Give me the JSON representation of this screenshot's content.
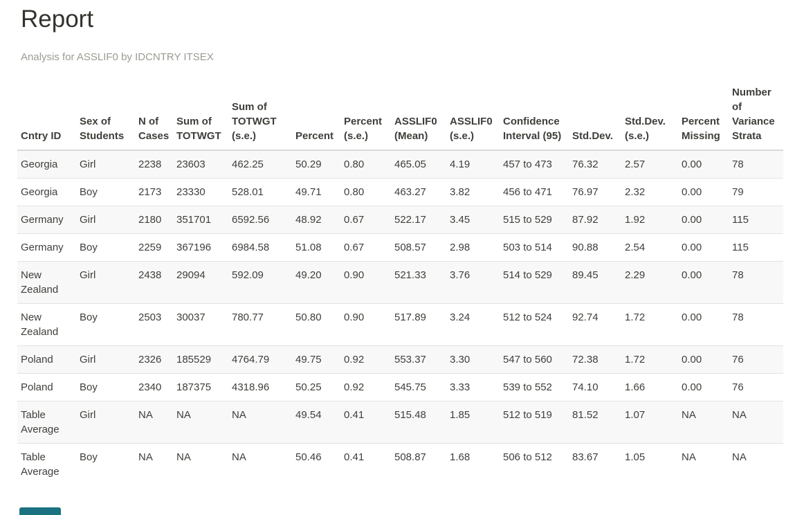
{
  "page": {
    "title": "Report",
    "subtitle": "Analysis for ASSLIF0 by IDCNTRY ITSEX"
  },
  "table": {
    "columns": [
      "Cntry ID",
      "Sex of Students",
      "N of Cases",
      "Sum of TOTWGT",
      "Sum of TOTWGT (s.e.)",
      "Percent",
      "Percent (s.e.)",
      "ASSLIF0 (Mean)",
      "ASSLIF0 (s.e.)",
      "Confidence Interval (95)",
      "Std.Dev.",
      "Std.Dev. (s.e.)",
      "Percent Missing",
      "Number of Variance Strata"
    ],
    "rows": [
      [
        "Georgia",
        "Girl",
        "2238",
        "23603",
        "462.25",
        "50.29",
        "0.80",
        "465.05",
        "4.19",
        "457 to 473",
        "76.32",
        "2.57",
        "0.00",
        "78"
      ],
      [
        "Georgia",
        "Boy",
        "2173",
        "23330",
        "528.01",
        "49.71",
        "0.80",
        "463.27",
        "3.82",
        "456 to 471",
        "76.97",
        "2.32",
        "0.00",
        "79"
      ],
      [
        "Germany",
        "Girl",
        "2180",
        "351701",
        "6592.56",
        "48.92",
        "0.67",
        "522.17",
        "3.45",
        "515 to 529",
        "87.92",
        "1.92",
        "0.00",
        "115"
      ],
      [
        "Germany",
        "Boy",
        "2259",
        "367196",
        "6984.58",
        "51.08",
        "0.67",
        "508.57",
        "2.98",
        "503 to 514",
        "90.88",
        "2.54",
        "0.00",
        "115"
      ],
      [
        "New Zealand",
        "Girl",
        "2438",
        "29094",
        "592.09",
        "49.20",
        "0.90",
        "521.33",
        "3.76",
        "514 to 529",
        "89.45",
        "2.29",
        "0.00",
        "78"
      ],
      [
        "New Zealand",
        "Boy",
        "2503",
        "30037",
        "780.77",
        "50.80",
        "0.90",
        "517.89",
        "3.24",
        "512 to 524",
        "92.74",
        "1.72",
        "0.00",
        "78"
      ],
      [
        "Poland",
        "Girl",
        "2326",
        "185529",
        "4764.79",
        "49.75",
        "0.92",
        "553.37",
        "3.30",
        "547 to 560",
        "72.38",
        "1.72",
        "0.00",
        "76"
      ],
      [
        "Poland",
        "Boy",
        "2340",
        "187375",
        "4318.96",
        "50.25",
        "0.92",
        "545.75",
        "3.33",
        "539 to 552",
        "74.10",
        "1.66",
        "0.00",
        "76"
      ],
      [
        "Table Average",
        "Girl",
        "NA",
        "NA",
        "NA",
        "49.54",
        "0.41",
        "515.48",
        "1.85",
        "512 to 519",
        "81.52",
        "1.07",
        "NA",
        "NA"
      ],
      [
        "Table Average",
        "Boy",
        "NA",
        "NA",
        "NA",
        "50.46",
        "0.41",
        "508.87",
        "1.68",
        "506 to 512",
        "83.67",
        "1.05",
        "NA",
        "NA"
      ]
    ]
  },
  "colors": {
    "accent_teal": "#1a7280",
    "title_text": "#33332e",
    "subtitle_text": "#9b9a92"
  }
}
